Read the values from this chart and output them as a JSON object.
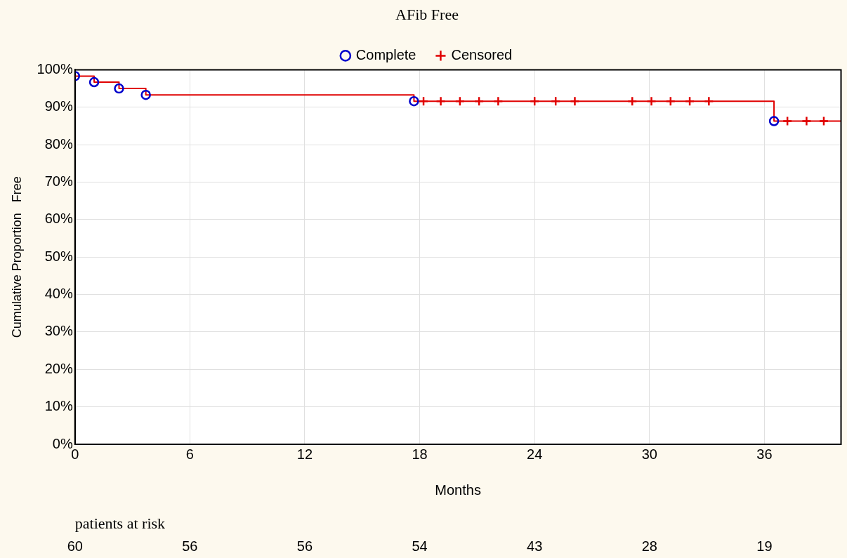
{
  "chart_data": {
    "type": "step",
    "title": "AFib Free",
    "xlabel": "Months",
    "ylabel": "Cumulative Proportion   Free",
    "xlim": [
      0,
      40
    ],
    "xticks": [
      0,
      6,
      12,
      18,
      24,
      30,
      36
    ],
    "ylim": [
      0,
      100
    ],
    "yticks": [
      {
        "value": 0,
        "label": "0%"
      },
      {
        "value": 10,
        "label": "10%"
      },
      {
        "value": 20,
        "label": "20%"
      },
      {
        "value": 30,
        "label": "30%"
      },
      {
        "value": 40,
        "label": "40%"
      },
      {
        "value": 50,
        "label": "50%"
      },
      {
        "value": 60,
        "label": "60%"
      },
      {
        "value": 70,
        "label": "70%"
      },
      {
        "value": 80,
        "label": "80%"
      },
      {
        "value": 90,
        "label": "90%"
      },
      {
        "value": 100,
        "label": "100%"
      }
    ],
    "grid": true,
    "legend": "top",
    "series": [
      {
        "type": "step",
        "color": "#e00000",
        "x": [
          0,
          1.0,
          2.3,
          3.7,
          17.7,
          36.5,
          40
        ],
        "values": [
          98.3,
          96.7,
          95.0,
          93.3,
          91.6,
          86.3,
          86.3
        ],
        "marker": "none"
      },
      {
        "type": "scatter",
        "name": "Complete",
        "color": "#0000cc",
        "marker": "circle",
        "x": [
          0,
          1.0,
          2.3,
          3.7,
          17.7,
          36.5
        ],
        "values": [
          98.3,
          96.7,
          95.0,
          93.3,
          91.6,
          86.3
        ]
      },
      {
        "type": "scatter",
        "name": "Censored",
        "color": "#e00000",
        "marker": "cross",
        "x": [
          18.2,
          19.1,
          20.1,
          21.1,
          22.1,
          24.0,
          25.1,
          26.1,
          29.1,
          30.1,
          31.1,
          32.1,
          33.1,
          37.2,
          38.2,
          39.1
        ],
        "values": [
          91.6,
          91.6,
          91.6,
          91.6,
          91.6,
          91.6,
          91.6,
          91.6,
          91.6,
          91.6,
          91.6,
          91.6,
          91.6,
          86.3,
          86.3,
          86.3
        ]
      }
    ],
    "annotations": [
      "patients at risk",
      "60",
      "56",
      "56",
      "54",
      "43",
      "28",
      "19"
    ]
  }
}
